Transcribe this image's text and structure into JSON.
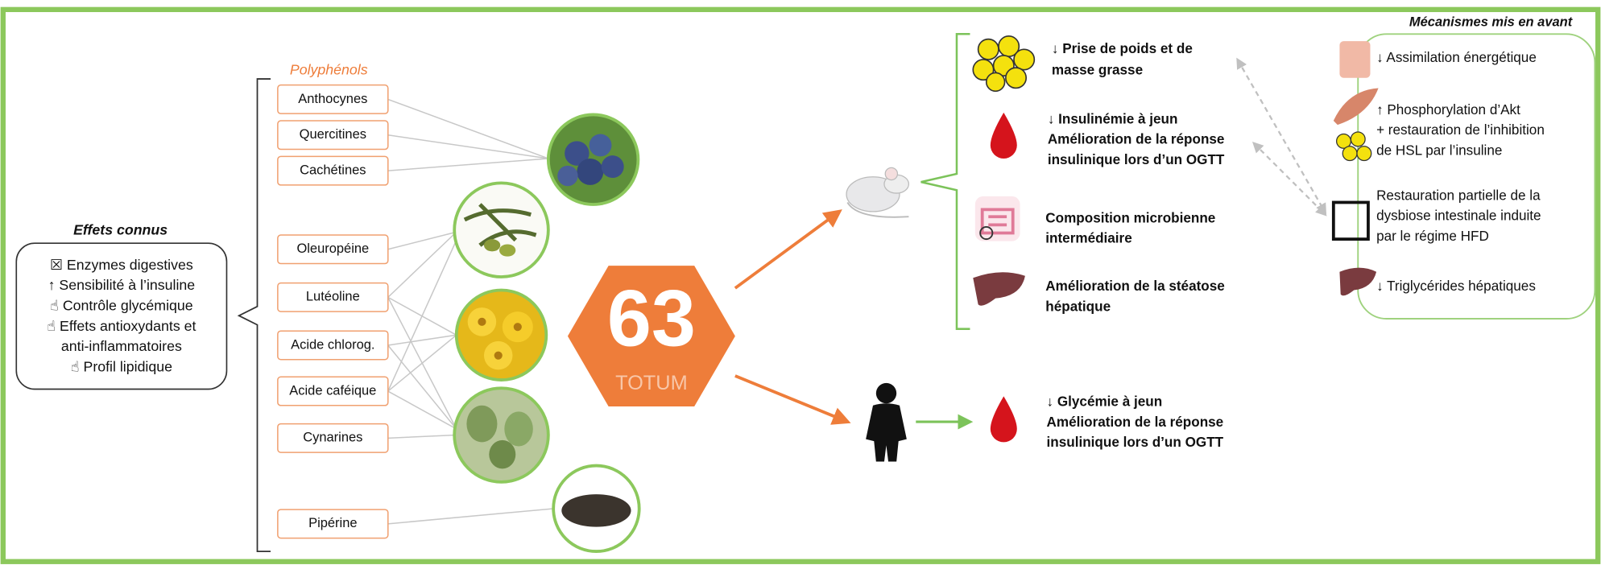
{
  "known_effects": {
    "title": "Effets connus",
    "lines": [
      "☒ Enzymes digestives",
      "↑ Sensibilité à l’insuline",
      "☝ Contrôle glycémique",
      "☝ Effets antioxydants et",
      "anti-inflammatoires",
      "☝ Profil lipidique"
    ]
  },
  "polyphenols": {
    "title": "Polyphénols",
    "items": [
      "Anthocynes",
      "Quercitines",
      "Cachétines",
      "Oleuropéine",
      "Lutéoline",
      "Acide chlorog.",
      "Acide caféique",
      "Cynarines",
      "Pipérine"
    ]
  },
  "logo": {
    "number": "63",
    "name": "TOTUM"
  },
  "mouse_outcomes": [
    {
      "lines": [
        "↓ Prise de poids et de",
        "masse grasse"
      ]
    },
    {
      "lines": [
        "↓ Insulinémie à jeun",
        "Amélioration de la réponse",
        "insulinique lors d’un OGTT"
      ]
    },
    {
      "lines": [
        "Composition microbienne",
        "intermédiaire"
      ]
    },
    {
      "lines": [
        "Amélioration de la stéatose",
        "hépatique"
      ]
    }
  ],
  "human_outcome": {
    "lines": [
      "↓ Glycémie à jeun",
      "Amélioration de la réponse",
      "insulinique lors d’un OGTT"
    ]
  },
  "mechanisms": {
    "title": "Mécanismes mis en avant",
    "items": [
      {
        "lines": [
          "↓ Assimilation énergétique"
        ]
      },
      {
        "lines": [
          "↑ Phosphorylation d’Akt",
          "+ restauration de l’inhibition",
          "de HSL par l’insuline"
        ]
      },
      {
        "lines": [
          "Restauration partielle de la",
          "dysbiose intestinale induite",
          "par le régime HFD"
        ]
      },
      {
        "lines": [
          "↓ Triglycérides hépatiques"
        ]
      }
    ]
  }
}
